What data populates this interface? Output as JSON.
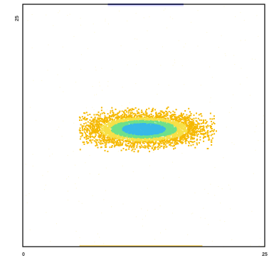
{
  "chart_data": {
    "type": "heatmap",
    "subtype": "density-scatter",
    "title": "",
    "xlabel": "",
    "ylabel": "",
    "xlim": [
      0,
      256
    ],
    "ylim": [
      0,
      256
    ],
    "x_ticks": [
      "0",
      "25"
    ],
    "y_ticks": [
      "25"
    ],
    "grid": false,
    "legend": "none",
    "density_levels": [
      {
        "level": "low",
        "color": "#f5b800"
      },
      {
        "level": "medium-low",
        "color": "#f7e048"
      },
      {
        "level": "medium",
        "color": "#6fe08a"
      },
      {
        "level": "high",
        "color": "#38b8e8"
      }
    ],
    "clusters": [
      {
        "name": "",
        "center": [
          128,
          124
        ],
        "spread": [
          30,
          8
        ],
        "extent_x": [
          60,
          205
        ],
        "extent_y": [
          100,
          148
        ]
      }
    ],
    "edge_marks": [
      {
        "axis": "top",
        "x_range": [
          90,
          170
        ],
        "colors": [
          "#3040c0",
          "#a0a0ff"
        ]
      },
      {
        "axis": "bottom",
        "x_range": [
          60,
          190
        ],
        "colors": [
          "#f5d060"
        ]
      }
    ]
  }
}
